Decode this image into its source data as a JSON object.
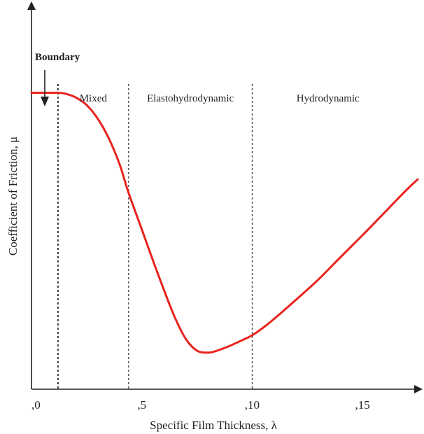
{
  "chart_data": {
    "type": "line",
    "title": "",
    "xlabel": "Specific Film Thickness, λ",
    "ylabel": "Coefficient of Friction, μ",
    "xlim": [
      0,
      17.5
    ],
    "ylim": [
      0,
      100
    ],
    "x_ticks": [
      {
        "value": 0,
        "label": ",0"
      },
      {
        "value": 5,
        "label": ",5"
      },
      {
        "value": 10,
        "label": ",10"
      },
      {
        "value": 15,
        "label": ",15"
      }
    ],
    "y_ticks": [],
    "grid": false,
    "legend": "none",
    "series_color": "#e8231e",
    "regions": [
      {
        "label": "Boundary",
        "boundary_x": 1.2
      },
      {
        "label": "Mixed",
        "boundary_x": 4.4
      },
      {
        "label": "Elastohydrodynamic",
        "boundary_x": 10.0
      },
      {
        "label": "Hydrodynamic"
      }
    ],
    "series": [
      {
        "x": [
          0,
          0.5,
          1.0,
          1.2,
          1.5,
          2.0,
          2.5,
          3.0,
          3.5,
          4.0,
          4.4,
          5.0,
          5.5,
          6.0,
          6.5,
          7.0,
          7.5,
          8.0,
          8.3,
          8.7,
          9.0,
          9.5,
          10.0,
          10.5,
          11.0,
          12.0,
          13.0,
          14.0,
          15.0,
          16.0,
          17.0,
          17.5
        ],
        "y": [
          77,
          77,
          77,
          77,
          76.8,
          75.8,
          73.8,
          70.3,
          65.2,
          58.3,
          51,
          41.5,
          33.5,
          25.8,
          18.6,
          13.0,
          10.0,
          9.5,
          9.8,
          10.6,
          11.3,
          12.6,
          14.0,
          16.0,
          18.3,
          23.3,
          28.5,
          34.3,
          40.0,
          45.9,
          51.8,
          54.5
        ]
      }
    ]
  }
}
